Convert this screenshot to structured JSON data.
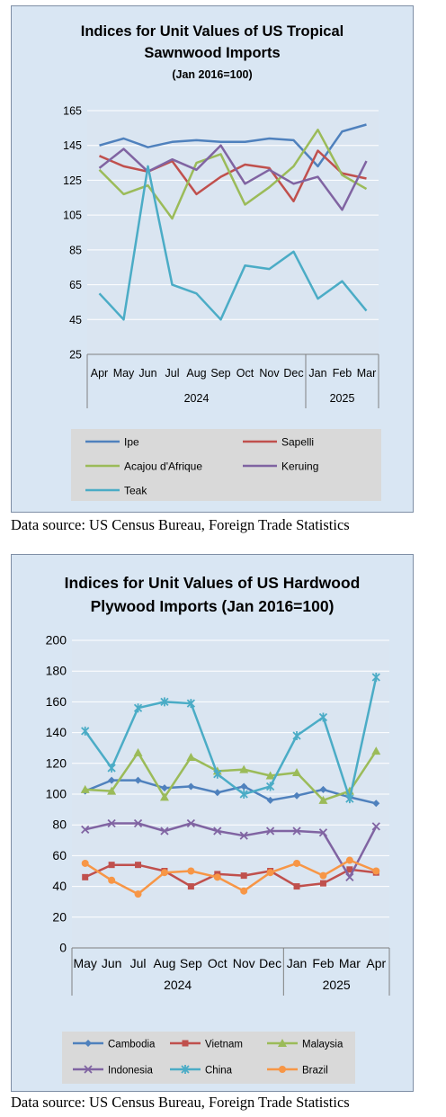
{
  "chart_data": [
    {
      "type": "line",
      "title_lines": [
        "Indices for Unit Values of US Tropical",
        "Sawnwood Imports"
      ],
      "subtitle": "(Jan 2016=100)",
      "categories": [
        "Apr",
        "May",
        "Jun",
        "Jul",
        "Aug",
        "Sep",
        "Oct",
        "Nov",
        "Dec",
        "Jan",
        "Feb",
        "Mar"
      ],
      "year_groups": [
        {
          "label": "2024",
          "start": 0,
          "end": 8
        },
        {
          "label": "2025",
          "start": 9,
          "end": 11
        }
      ],
      "y_ticks": [
        "25",
        "45",
        "65",
        "85",
        "105",
        "125",
        "145",
        "165"
      ],
      "ylim": [
        25,
        165
      ],
      "legend_position": "bottom",
      "series": [
        {
          "name": "Ipe",
          "color": "#4f81bd",
          "marker": "none",
          "values": [
            145,
            149,
            144,
            147,
            148,
            147,
            147,
            149,
            148,
            133,
            153,
            157
          ]
        },
        {
          "name": "Sapelli",
          "color": "#c0504d",
          "marker": "none",
          "values": [
            139,
            133,
            130,
            136,
            117,
            127,
            134,
            132,
            113,
            142,
            129,
            126
          ]
        },
        {
          "name": "Acajou d'Afrique",
          "color": "#9bbb59",
          "marker": "none",
          "values": [
            131,
            117,
            122,
            103,
            135,
            140,
            111,
            121,
            133,
            154,
            128,
            120
          ]
        },
        {
          "name": "Keruing",
          "color": "#8064a2",
          "marker": "none",
          "values": [
            132,
            143,
            130,
            137,
            131,
            145,
            123,
            131,
            123,
            127,
            108,
            136
          ]
        },
        {
          "name": "Teak",
          "color": "#4bacc6",
          "marker": "none",
          "values": [
            60,
            45,
            133,
            65,
            60,
            45,
            76,
            74,
            84,
            57,
            67,
            50
          ]
        }
      ]
    },
    {
      "type": "line",
      "title_lines": [
        "Indices for Unit Values of US Hardwood",
        "Plywood Imports (Jan 2016=100)"
      ],
      "subtitle": "",
      "categories": [
        "May",
        "Jun",
        "Jul",
        "Aug",
        "Sep",
        "Oct",
        "Nov",
        "Dec",
        "Jan",
        "Feb",
        "Mar",
        "Apr"
      ],
      "year_groups": [
        {
          "label": "2024",
          "start": 0,
          "end": 7
        },
        {
          "label": "2025",
          "start": 8,
          "end": 11
        }
      ],
      "y_ticks": [
        "0",
        "20",
        "40",
        "60",
        "80",
        "100",
        "120",
        "140",
        "160",
        "180",
        "200"
      ],
      "ylim": [
        0,
        200
      ],
      "legend_position": "bottom",
      "series": [
        {
          "name": "Cambodia",
          "color": "#4f81bd",
          "marker": "diamond",
          "values": [
            102,
            109,
            109,
            104,
            105,
            101,
            105,
            96,
            99,
            103,
            98,
            94
          ]
        },
        {
          "name": "Vietnam",
          "color": "#c0504d",
          "marker": "square",
          "values": [
            46,
            54,
            54,
            50,
            40,
            48,
            47,
            50,
            40,
            42,
            51,
            49
          ]
        },
        {
          "name": "Malaysia",
          "color": "#9bbb59",
          "marker": "triangle",
          "values": [
            103,
            102,
            127,
            98,
            124,
            115,
            116,
            112,
            114,
            96,
            102,
            128
          ]
        },
        {
          "name": "Indonesia",
          "color": "#8064a2",
          "marker": "x",
          "values": [
            77,
            81,
            81,
            76,
            81,
            76,
            73,
            76,
            76,
            75,
            46,
            79
          ]
        },
        {
          "name": "China",
          "color": "#4bacc6",
          "marker": "star",
          "values": [
            141,
            117,
            156,
            160,
            159,
            113,
            100,
            105,
            138,
            150,
            97,
            176
          ]
        },
        {
          "name": "Brazil",
          "color": "#f79646",
          "marker": "circle",
          "values": [
            55,
            44,
            35,
            49,
            50,
            46,
            37,
            49,
            55,
            47,
            57,
            50
          ]
        }
      ]
    }
  ],
  "sources": [
    "Data source: US Census Bureau, Foreign Trade Statistics",
    "Data source: US Census Bureau, Foreign Trade Statistics"
  ]
}
